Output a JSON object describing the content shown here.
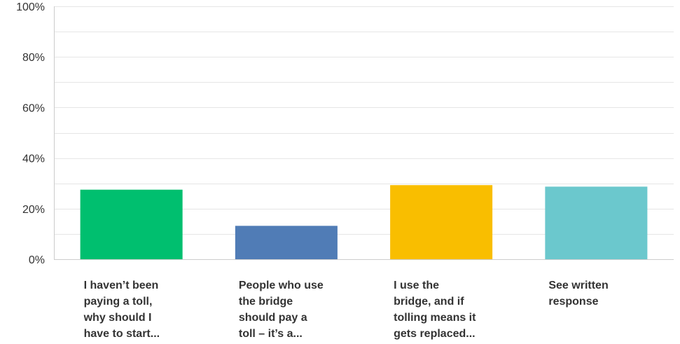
{
  "chart_data": {
    "type": "bar",
    "categories": [
      [
        "I haven’t been",
        "paying a toll,",
        "why should I",
        "have to start..."
      ],
      [
        "People who use",
        "the bridge",
        "should pay a",
        "toll – it’s a..."
      ],
      [
        "I use the",
        "bridge, and if",
        "tolling means it",
        "gets replaced..."
      ],
      [
        "See written",
        "response"
      ]
    ],
    "values": [
      27.5,
      13.2,
      29.3,
      28.7
    ],
    "colors": [
      "#00bf6f",
      "#507cb6",
      "#f9be00",
      "#6bc8cd"
    ],
    "yticks": [
      "0%",
      "20%",
      "40%",
      "60%",
      "80%",
      "100%"
    ],
    "ylim": [
      0,
      100
    ],
    "grid": true,
    "legend": "none",
    "title": "",
    "xlabel": "",
    "ylabel": ""
  }
}
